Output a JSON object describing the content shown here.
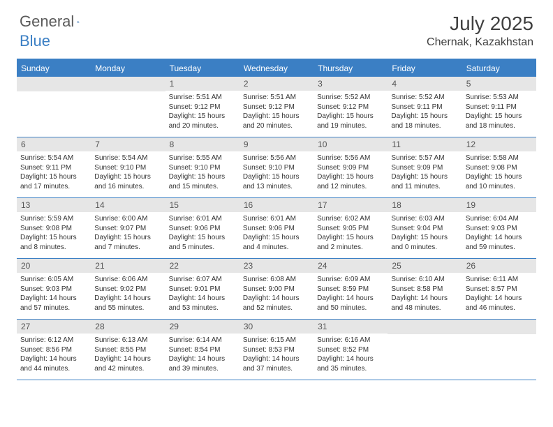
{
  "brand": {
    "text1": "General",
    "text2": "Blue"
  },
  "title": "July 2025",
  "location": "Chernak, Kazakhstan",
  "colors": {
    "header_bg": "#3b7fc4",
    "header_text": "#ffffff",
    "daynum_bg": "#e6e6e6",
    "daynum_text": "#555555",
    "body_text": "#333333",
    "rule": "#3b7fc4"
  },
  "day_names": [
    "Sunday",
    "Monday",
    "Tuesday",
    "Wednesday",
    "Thursday",
    "Friday",
    "Saturday"
  ],
  "weeks": [
    [
      null,
      null,
      {
        "n": "1",
        "sunrise": "5:51 AM",
        "sunset": "9:12 PM",
        "daylight": "15 hours and 20 minutes."
      },
      {
        "n": "2",
        "sunrise": "5:51 AM",
        "sunset": "9:12 PM",
        "daylight": "15 hours and 20 minutes."
      },
      {
        "n": "3",
        "sunrise": "5:52 AM",
        "sunset": "9:12 PM",
        "daylight": "15 hours and 19 minutes."
      },
      {
        "n": "4",
        "sunrise": "5:52 AM",
        "sunset": "9:11 PM",
        "daylight": "15 hours and 18 minutes."
      },
      {
        "n": "5",
        "sunrise": "5:53 AM",
        "sunset": "9:11 PM",
        "daylight": "15 hours and 18 minutes."
      }
    ],
    [
      {
        "n": "6",
        "sunrise": "5:54 AM",
        "sunset": "9:11 PM",
        "daylight": "15 hours and 17 minutes."
      },
      {
        "n": "7",
        "sunrise": "5:54 AM",
        "sunset": "9:10 PM",
        "daylight": "15 hours and 16 minutes."
      },
      {
        "n": "8",
        "sunrise": "5:55 AM",
        "sunset": "9:10 PM",
        "daylight": "15 hours and 15 minutes."
      },
      {
        "n": "9",
        "sunrise": "5:56 AM",
        "sunset": "9:10 PM",
        "daylight": "15 hours and 13 minutes."
      },
      {
        "n": "10",
        "sunrise": "5:56 AM",
        "sunset": "9:09 PM",
        "daylight": "15 hours and 12 minutes."
      },
      {
        "n": "11",
        "sunrise": "5:57 AM",
        "sunset": "9:09 PM",
        "daylight": "15 hours and 11 minutes."
      },
      {
        "n": "12",
        "sunrise": "5:58 AM",
        "sunset": "9:08 PM",
        "daylight": "15 hours and 10 minutes."
      }
    ],
    [
      {
        "n": "13",
        "sunrise": "5:59 AM",
        "sunset": "9:08 PM",
        "daylight": "15 hours and 8 minutes."
      },
      {
        "n": "14",
        "sunrise": "6:00 AM",
        "sunset": "9:07 PM",
        "daylight": "15 hours and 7 minutes."
      },
      {
        "n": "15",
        "sunrise": "6:01 AM",
        "sunset": "9:06 PM",
        "daylight": "15 hours and 5 minutes."
      },
      {
        "n": "16",
        "sunrise": "6:01 AM",
        "sunset": "9:06 PM",
        "daylight": "15 hours and 4 minutes."
      },
      {
        "n": "17",
        "sunrise": "6:02 AM",
        "sunset": "9:05 PM",
        "daylight": "15 hours and 2 minutes."
      },
      {
        "n": "18",
        "sunrise": "6:03 AM",
        "sunset": "9:04 PM",
        "daylight": "15 hours and 0 minutes."
      },
      {
        "n": "19",
        "sunrise": "6:04 AM",
        "sunset": "9:03 PM",
        "daylight": "14 hours and 59 minutes."
      }
    ],
    [
      {
        "n": "20",
        "sunrise": "6:05 AM",
        "sunset": "9:03 PM",
        "daylight": "14 hours and 57 minutes."
      },
      {
        "n": "21",
        "sunrise": "6:06 AM",
        "sunset": "9:02 PM",
        "daylight": "14 hours and 55 minutes."
      },
      {
        "n": "22",
        "sunrise": "6:07 AM",
        "sunset": "9:01 PM",
        "daylight": "14 hours and 53 minutes."
      },
      {
        "n": "23",
        "sunrise": "6:08 AM",
        "sunset": "9:00 PM",
        "daylight": "14 hours and 52 minutes."
      },
      {
        "n": "24",
        "sunrise": "6:09 AM",
        "sunset": "8:59 PM",
        "daylight": "14 hours and 50 minutes."
      },
      {
        "n": "25",
        "sunrise": "6:10 AM",
        "sunset": "8:58 PM",
        "daylight": "14 hours and 48 minutes."
      },
      {
        "n": "26",
        "sunrise": "6:11 AM",
        "sunset": "8:57 PM",
        "daylight": "14 hours and 46 minutes."
      }
    ],
    [
      {
        "n": "27",
        "sunrise": "6:12 AM",
        "sunset": "8:56 PM",
        "daylight": "14 hours and 44 minutes."
      },
      {
        "n": "28",
        "sunrise": "6:13 AM",
        "sunset": "8:55 PM",
        "daylight": "14 hours and 42 minutes."
      },
      {
        "n": "29",
        "sunrise": "6:14 AM",
        "sunset": "8:54 PM",
        "daylight": "14 hours and 39 minutes."
      },
      {
        "n": "30",
        "sunrise": "6:15 AM",
        "sunset": "8:53 PM",
        "daylight": "14 hours and 37 minutes."
      },
      {
        "n": "31",
        "sunrise": "6:16 AM",
        "sunset": "8:52 PM",
        "daylight": "14 hours and 35 minutes."
      },
      null,
      null
    ]
  ],
  "labels": {
    "sunrise": "Sunrise:",
    "sunset": "Sunset:",
    "daylight": "Daylight:"
  }
}
